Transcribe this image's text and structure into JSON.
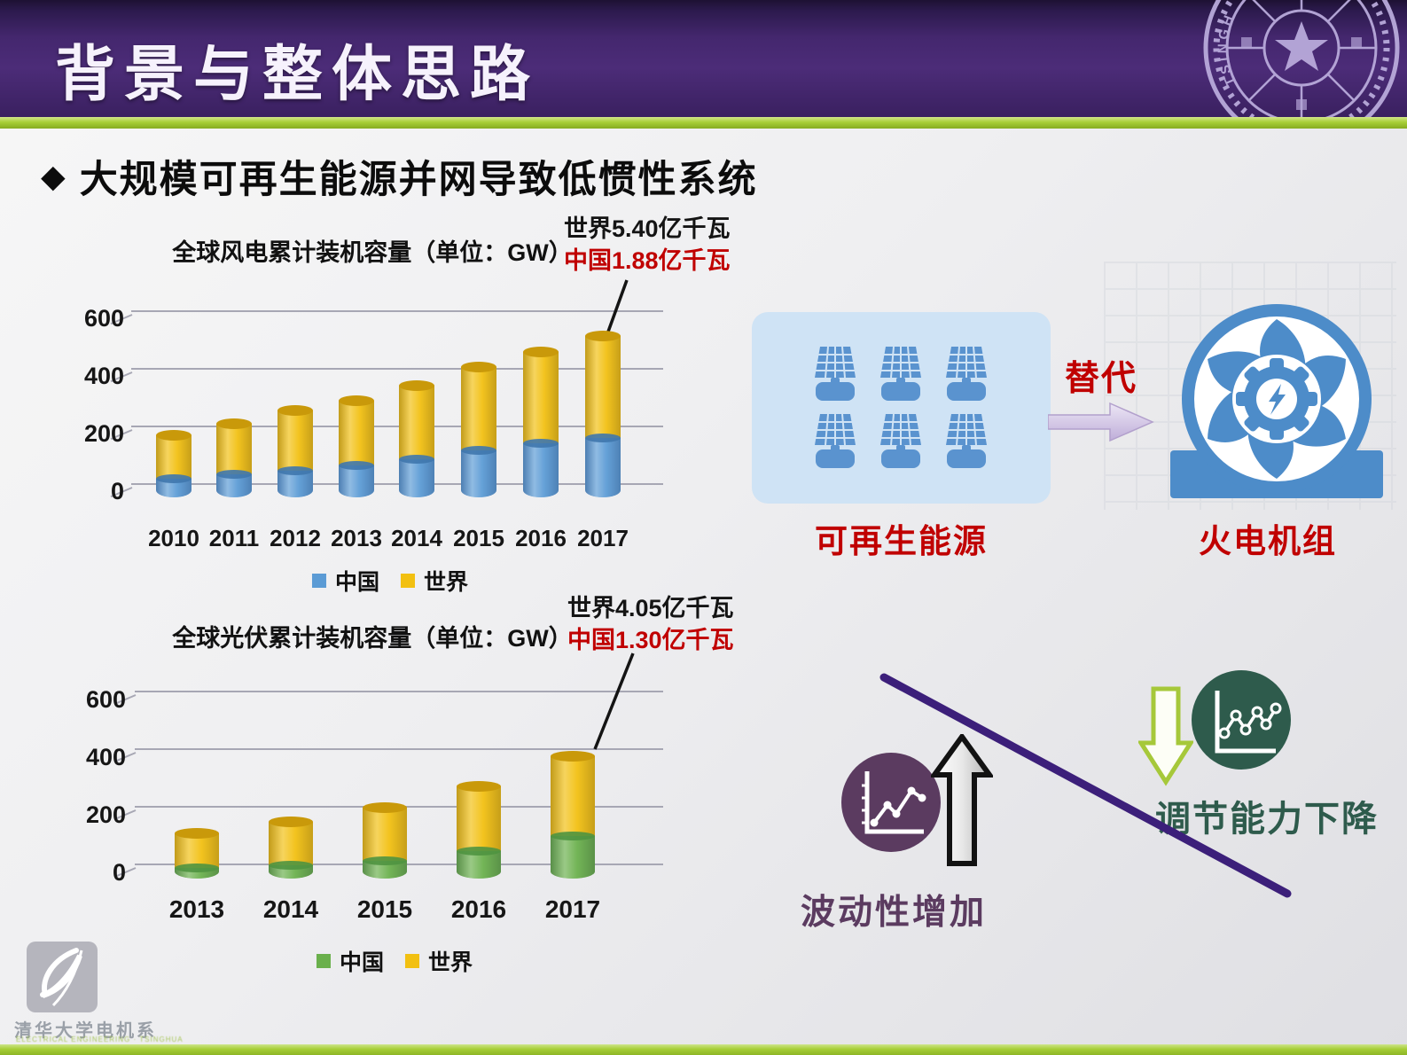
{
  "header": {
    "title": "背景与整体思路",
    "seal_text": "TSINGHUA"
  },
  "heading": {
    "bullet": "◆",
    "text": "大规模可再生能源并网导致低惯性系统"
  },
  "chart_data": [
    {
      "type": "bar",
      "title": "全球风电累计装机容量（单位：GW）",
      "categories": [
        "2010",
        "2011",
        "2012",
        "2013",
        "2014",
        "2015",
        "2016",
        "2017"
      ],
      "series": [
        {
          "name": "中国",
          "color": "#5B9BD5",
          "cap_color": "#3f77ad",
          "values": [
            45,
            62,
            75,
            91,
            114,
            145,
            169,
            188
          ]
        },
        {
          "name": "世界",
          "color": "#F2C011",
          "cap_color": "#c9990a",
          "values": [
            198,
            238,
            283,
            318,
            370,
            433,
            487,
            540
          ]
        }
      ],
      "ylim": [
        0,
        650
      ],
      "yticks": [
        0,
        200,
        400,
        600
      ],
      "grid": true,
      "legend_position": "bottom",
      "annotation_world": "世界5.40亿千瓦",
      "annotation_china": "中国1.88亿千瓦"
    },
    {
      "type": "bar",
      "title": "全球光伏累计装机容量（单位：GW）",
      "categories": [
        "2013",
        "2014",
        "2015",
        "2016",
        "2017"
      ],
      "series": [
        {
          "name": "中国",
          "color": "#6AB04C",
          "cap_color": "#4f9440",
          "values": [
            19,
            28,
            43,
            77,
            130
          ]
        },
        {
          "name": "世界",
          "color": "#F2C011",
          "cap_color": "#c9990a",
          "values": [
            138,
            177,
            227,
            303,
            405
          ]
        }
      ],
      "ylim": [
        0,
        650
      ],
      "yticks": [
        0,
        200,
        400,
        600
      ],
      "grid": true,
      "legend_position": "bottom",
      "annotation_world": "世界4.05亿千瓦",
      "annotation_china": "中国1.30亿千瓦"
    }
  ],
  "right_panel": {
    "renewable_label": "可再生能源",
    "replace_label": "替代",
    "thermal_label": "火电机组"
  },
  "diagram": {
    "volatility_label": "波动性增加",
    "regulation_label": "调节能力下降"
  },
  "footer": {
    "dept": "清华大学电机系",
    "dept_sub": "ELECTRICAL ENGINEERING · TSINGHUA"
  },
  "colors": {
    "header_purple": "#44276e",
    "accent_green": "#a6ce37",
    "accent_red": "#c00000",
    "china_blue": "#5B9BD5",
    "china_green": "#6AB04C",
    "world_gold": "#F2C011",
    "panel_blue": "#5a93cf",
    "turbine_blue": "#4d8cc9",
    "line_purple": "#3c1f7a",
    "circle_purple": "#5b3b60",
    "circle_green": "#2e5b4c"
  },
  "icons": {
    "seal": "tsinghua-seal",
    "solar": "solar-panel",
    "turbine": "thermal-turbine-fan",
    "right_arrow": "replace-right-arrow",
    "up_arrow": "increase-up-arrow",
    "down_arrow": "decrease-down-arrow",
    "trend_chart": "rising-trend-chart",
    "volatile_chart": "fluctuating-trend-chart"
  }
}
